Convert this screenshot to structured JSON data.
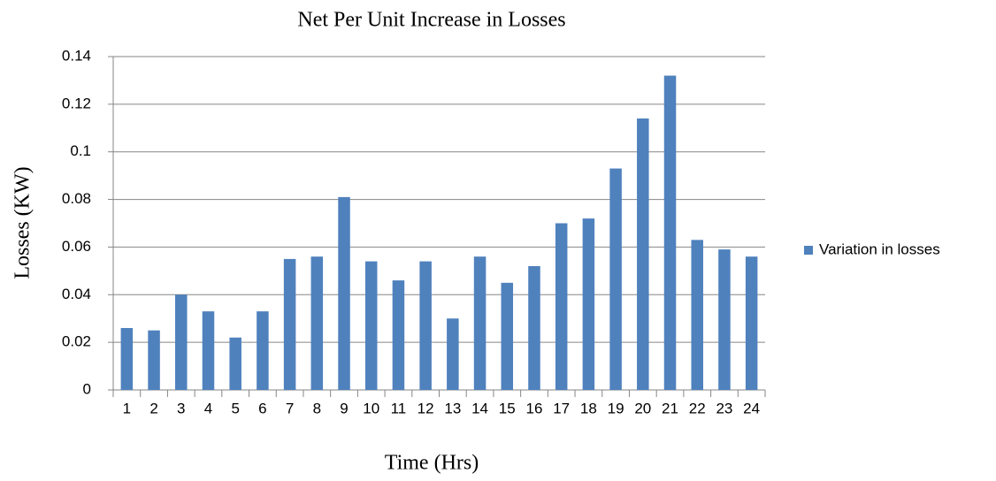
{
  "chart_data": {
    "type": "bar",
    "title": "Net Per Unit Increase in Losses",
    "x_label": "Time (Hrs)",
    "y_label": "Losses (KW)",
    "categories": [
      "1",
      "2",
      "3",
      "4",
      "5",
      "6",
      "7",
      "8",
      "9",
      "10",
      "11",
      "12",
      "13",
      "14",
      "15",
      "16",
      "17",
      "18",
      "19",
      "20",
      "21",
      "22",
      "23",
      "24"
    ],
    "series": [
      {
        "name": "Variation in losses",
        "color": "#4f81bd",
        "values": [
          0.026,
          0.025,
          0.04,
          0.033,
          0.022,
          0.033,
          0.055,
          0.056,
          0.081,
          0.054,
          0.046,
          0.054,
          0.03,
          0.056,
          0.045,
          0.052,
          0.07,
          0.072,
          0.093,
          0.114,
          0.132,
          0.063,
          0.059,
          0.056
        ]
      }
    ],
    "ylim": [
      0,
      0.14
    ],
    "yticks": [
      0,
      0.02,
      0.04,
      0.06,
      0.08,
      0.1,
      0.12,
      0.14
    ],
    "grid": true,
    "legend": "right"
  }
}
